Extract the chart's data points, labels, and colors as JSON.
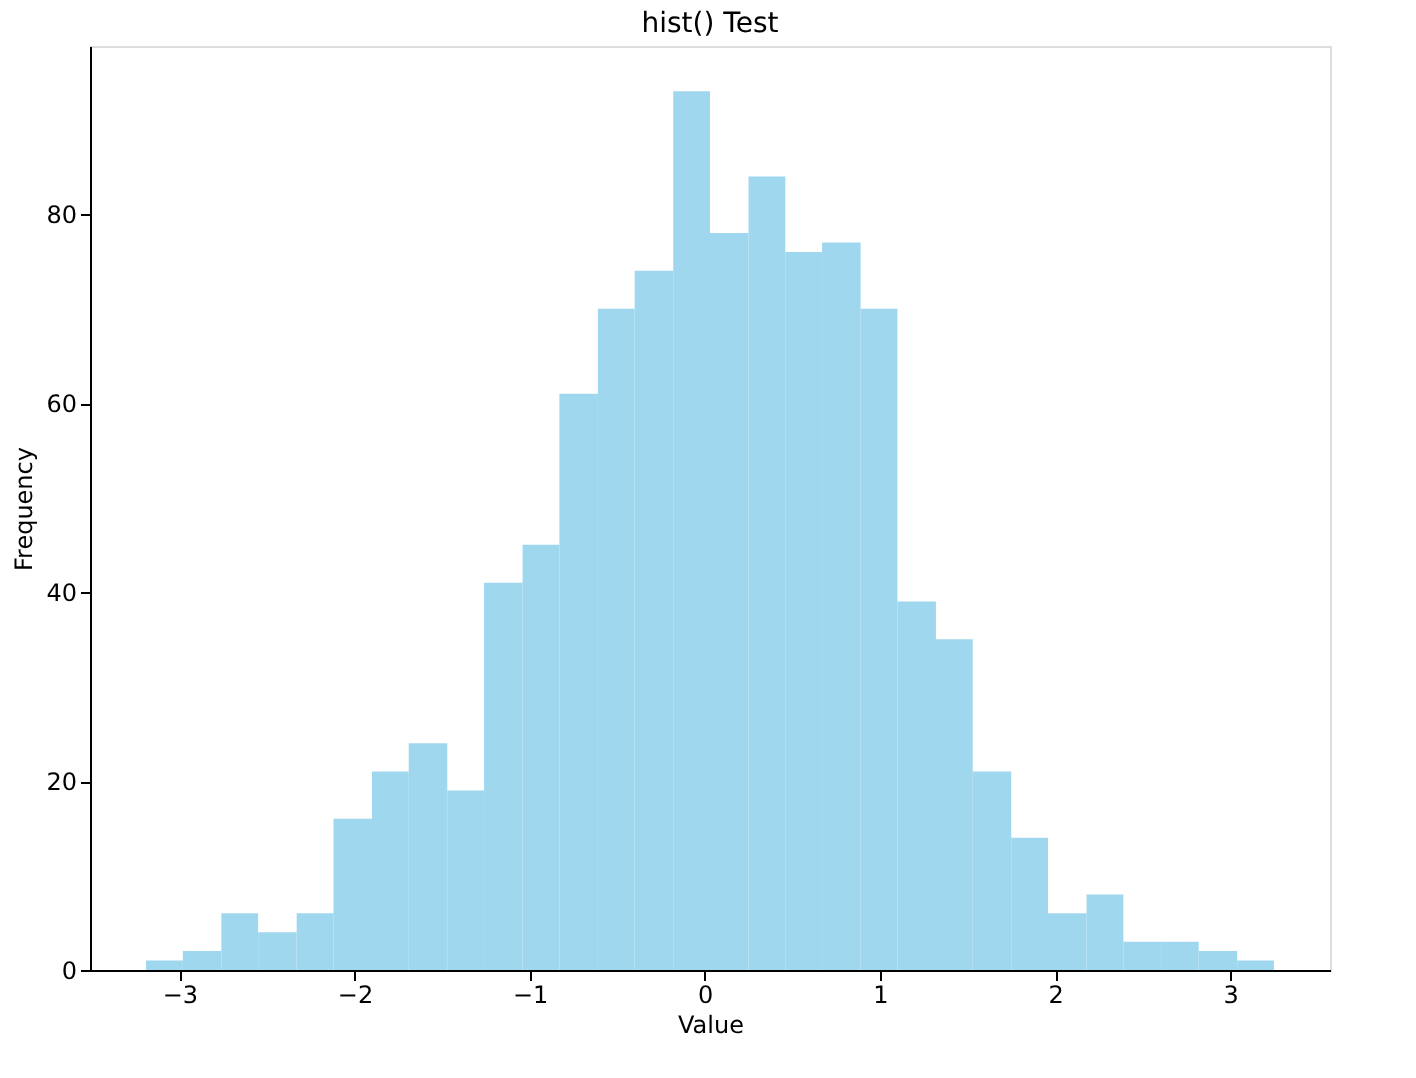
{
  "chart_data": {
    "type": "histogram",
    "title": "hist() Test",
    "xlabel": "Value",
    "ylabel": "Frequency",
    "bins": [
      -3.19,
      -2.98,
      -2.76,
      -2.55,
      -2.33,
      -2.12,
      -1.9,
      -1.69,
      -1.47,
      -1.26,
      -1.04,
      -0.83,
      -0.61,
      -0.4,
      -0.18,
      0.03,
      0.25,
      0.46,
      0.67,
      0.89,
      1.1,
      1.32,
      1.53,
      1.75,
      1.96,
      2.18,
      2.39,
      2.61,
      2.82,
      3.04,
      3.25
    ],
    "values": [
      1,
      2,
      6,
      4,
      6,
      16,
      21,
      24,
      19,
      41,
      45,
      61,
      70,
      74,
      93,
      78,
      84,
      76,
      77,
      70,
      39,
      35,
      21,
      14,
      6,
      8,
      3,
      3,
      2,
      1
    ],
    "color": "#9fd7ef",
    "xlim": [
      -3.51,
      3.57
    ],
    "xticks": [
      {
        "value": -3,
        "label": "−3"
      },
      {
        "value": -2,
        "label": "−2"
      },
      {
        "value": -1,
        "label": "−1"
      },
      0,
      1,
      2,
      3
    ],
    "ylim": [
      0,
      97.8
    ],
    "yticks": [
      0,
      20,
      40,
      60,
      80
    ],
    "grid": false
  }
}
